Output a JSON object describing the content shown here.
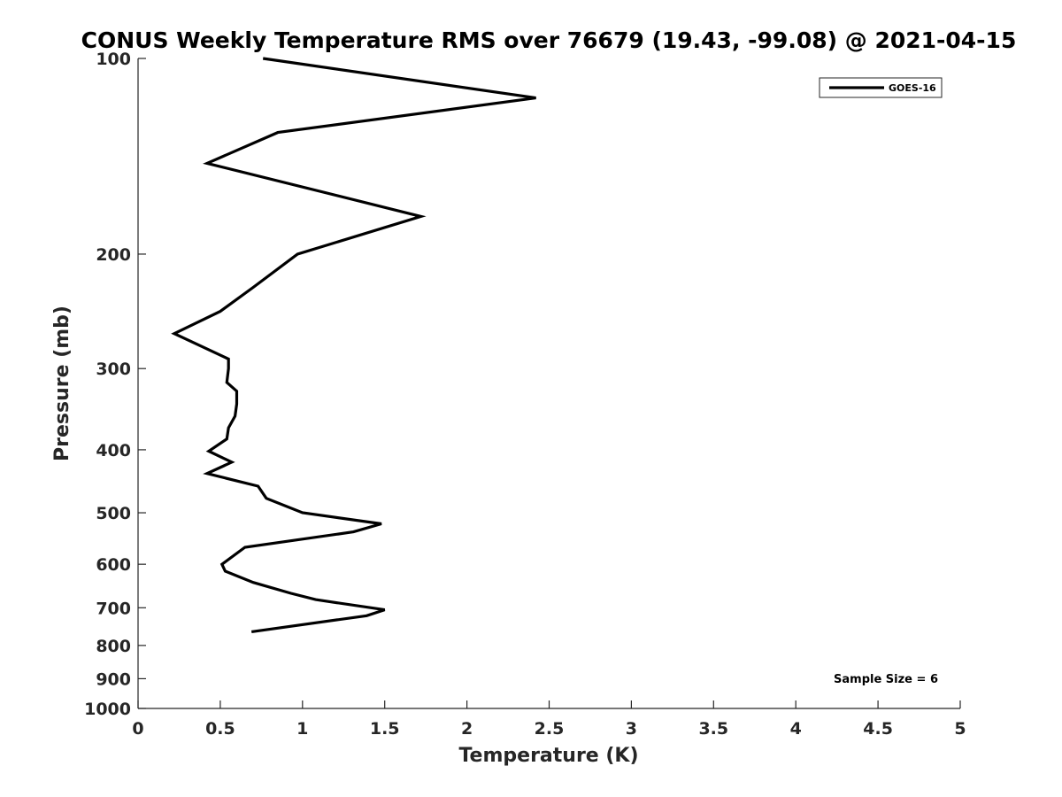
{
  "chart_data": {
    "type": "line",
    "title": "CONUS Weekly Temperature RMS over 76679 (19.43, -99.08) @ 2021-04-15",
    "xlabel": "Temperature (K)",
    "ylabel": "Pressure (mb)",
    "xlim": [
      0,
      5
    ],
    "ylim": [
      100,
      1000
    ],
    "y_scale": "log",
    "y_reversed": true,
    "x_ticks": [
      0,
      0.5,
      1,
      1.5,
      2,
      2.5,
      3,
      3.5,
      4,
      4.5,
      5
    ],
    "x_tick_labels": [
      "0",
      "0.5",
      "1",
      "1.5",
      "2",
      "2.5",
      "3",
      "3.5",
      "4",
      "4.5",
      "5"
    ],
    "y_ticks": [
      100,
      200,
      300,
      400,
      500,
      600,
      700,
      800,
      900,
      1000
    ],
    "y_tick_labels": [
      "100",
      "200",
      "300",
      "400",
      "500",
      "600",
      "700",
      "800",
      "900",
      "1000"
    ],
    "grid": false,
    "legend_position": "top-right",
    "annotation": "Sample Size = 6",
    "series": [
      {
        "name": "GOES-16",
        "color": "#000000",
        "x": [
          0.76,
          2.42,
          0.85,
          0.42,
          1.72,
          0.97,
          0.7,
          0.5,
          0.22,
          0.55,
          0.55,
          0.54,
          0.6,
          0.6,
          0.59,
          0.55,
          0.54,
          0.43,
          0.57,
          0.42,
          0.73,
          0.78,
          1.0,
          1.48,
          1.31,
          0.65,
          0.51,
          0.53,
          0.7,
          0.93,
          1.08,
          1.5,
          1.39,
          0.69
        ],
        "y": [
          100,
          115,
          130,
          145,
          175,
          200,
          225,
          245,
          265,
          290,
          300,
          315,
          325,
          340,
          355,
          370,
          385,
          402,
          418,
          435,
          455,
          475,
          500,
          520,
          535,
          565,
          600,
          615,
          640,
          665,
          680,
          705,
          720,
          762
        ]
      }
    ]
  }
}
